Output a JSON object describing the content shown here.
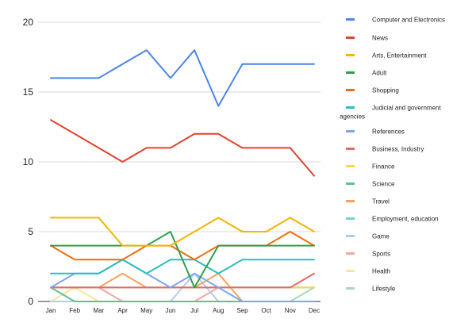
{
  "chart_data": {
    "type": "line",
    "title": "",
    "xlabel": "",
    "ylabel": "",
    "categories": [
      "Jan",
      "Feb",
      "Mar",
      "Apr",
      "May",
      "Jun",
      "Jul",
      "Aug",
      "Sep",
      "Oct",
      "Nov",
      "Dec"
    ],
    "ylim": [
      0,
      20
    ],
    "yticks": [
      0,
      5,
      10,
      15,
      20
    ],
    "grid": true,
    "legend_position": "right",
    "series": [
      {
        "name": "Computer and Electronics",
        "color": "#4a86e8",
        "values": [
          16,
          16,
          16,
          17,
          18,
          16,
          18,
          14,
          17,
          17,
          17,
          17
        ]
      },
      {
        "name": "News",
        "color": "#e0432f",
        "values": [
          13,
          12,
          11,
          10,
          11,
          11,
          12,
          12,
          11,
          11,
          11,
          9
        ]
      },
      {
        "name": "Arts, Entertainment",
        "color": "#f4b400",
        "values": [
          6,
          6,
          6,
          4,
          4,
          4,
          5,
          6,
          5,
          5,
          6,
          5
        ]
      },
      {
        "name": "Adult",
        "color": "#2ea04b",
        "values": [
          4,
          4,
          4,
          4,
          4,
          5,
          1,
          4,
          4,
          4,
          4,
          4
        ]
      },
      {
        "name": "Shopping",
        "color": "#f26d0c",
        "values": [
          4,
          3,
          3,
          3,
          4,
          4,
          3,
          4,
          4,
          4,
          5,
          4
        ]
      },
      {
        "name": "Judicial and government agencies",
        "color": "#2dbdbd",
        "values": [
          2,
          2,
          2,
          3,
          2,
          3,
          3,
          2,
          3,
          3,
          3,
          3
        ]
      },
      {
        "name": "References",
        "color": "#7ea5f0",
        "values": [
          1,
          2,
          2,
          3,
          2,
          1,
          2,
          1,
          0,
          0,
          0,
          0
        ]
      },
      {
        "name": "Business, Industry",
        "color": "#e06b6b",
        "values": [
          1,
          1,
          1,
          1,
          1,
          1,
          1,
          1,
          1,
          1,
          1,
          2
        ]
      },
      {
        "name": "Finance",
        "color": "#ffd44a",
        "values": [
          1,
          1,
          1,
          1,
          1,
          1,
          1,
          1,
          1,
          1,
          1,
          1
        ]
      },
      {
        "name": "Science",
        "color": "#62c08b",
        "values": [
          1,
          0,
          0,
          0,
          0,
          0,
          0,
          0,
          0,
          0,
          0,
          0
        ]
      },
      {
        "name": "Travel",
        "color": "#f5a25d",
        "values": [
          1,
          1,
          1,
          2,
          1,
          1,
          1,
          2,
          0,
          0,
          0,
          0
        ]
      },
      {
        "name": "Employment, education",
        "color": "#76cfd9",
        "values": [
          1,
          1,
          1,
          1,
          1,
          1,
          1,
          1,
          1,
          1,
          1,
          1
        ]
      },
      {
        "name": "Game",
        "color": "#b3cbf3",
        "values": [
          0,
          0,
          0,
          0,
          0,
          0,
          2,
          0,
          0,
          0,
          0,
          0
        ]
      },
      {
        "name": "Sports",
        "color": "#f2a7a4",
        "values": [
          1,
          1,
          1,
          0,
          0,
          0,
          0,
          1,
          1,
          1,
          1,
          1
        ]
      },
      {
        "name": "Health",
        "color": "#fde49a",
        "values": [
          0,
          1,
          0,
          0,
          0,
          0,
          0,
          0,
          0,
          0,
          0,
          0
        ]
      },
      {
        "name": "Lifestyle",
        "color": "#a8d8b6",
        "values": [
          0,
          0,
          0,
          0,
          0,
          0,
          0,
          0,
          0,
          0,
          0,
          1
        ]
      }
    ]
  }
}
